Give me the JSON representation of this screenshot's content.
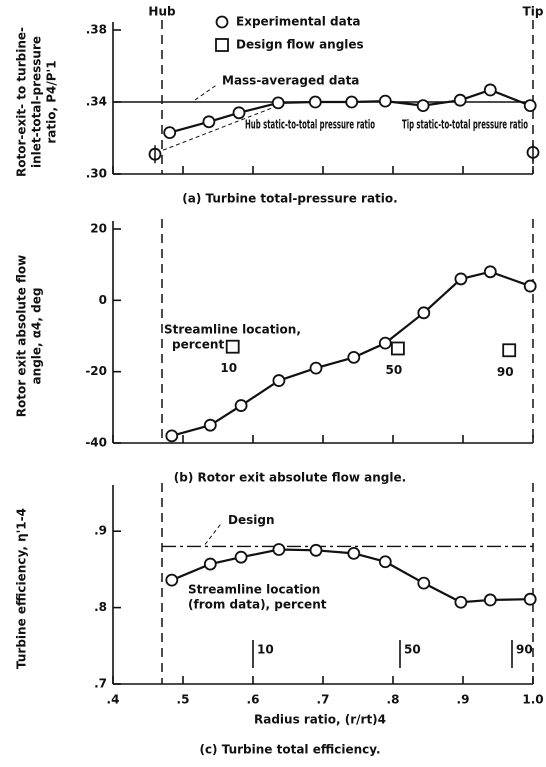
{
  "chart_data": [
    {
      "type": "line",
      "caption": "(a) Turbine total-pressure ratio.",
      "ylabel": [
        "Rotor-exit- to turbine-",
        "inlet-total-pressure",
        "ratio, P4/P'1"
      ],
      "hub": {
        "label": "Hub",
        "x": 0.47
      },
      "tip": {
        "label": "Tip",
        "x": 1.0
      },
      "xlim": [
        0.4,
        1.0
      ],
      "ylim": [
        0.3,
        0.38
      ],
      "yticks": [
        {
          "value": 0.38,
          "label": ".38"
        },
        {
          "value": 0.34,
          "label": ".34"
        },
        {
          "value": 0.3,
          "label": ".30"
        }
      ],
      "reference": {
        "label": "Mass-averaged data",
        "value": 0.34
      },
      "series": [
        {
          "name": "Experimental data",
          "color": "#111111",
          "x": [
            0.481,
            0.537,
            0.58,
            0.636,
            0.689,
            0.741,
            0.789,
            0.843,
            0.896,
            0.939,
            0.996
          ],
          "values": [
            0.323,
            0.329,
            0.334,
            0.3395,
            0.34,
            0.34,
            0.3405,
            0.338,
            0.341,
            0.3467,
            0.338
          ]
        },
        {
          "name": "Hub static-to-total pressure ratio",
          "color": "#111111",
          "x": [
            0.46
          ],
          "values": [
            0.311
          ]
        },
        {
          "name": "Tip static-to-total pressure ratio",
          "color": "#111111",
          "x": [
            1.0
          ],
          "values": [
            0.312
          ]
        }
      ]
    },
    {
      "type": "line",
      "caption": "(b) Rotor exit absolute flow angle.",
      "ylabel": [
        "Rotor exit absolute flow",
        "angle, α4, deg"
      ],
      "annotation": [
        "Streamline location,",
        "percent"
      ],
      "xlim": [
        0.4,
        1.0
      ],
      "ylim": [
        -40,
        20
      ],
      "yticks": [
        20,
        0,
        -20,
        -40
      ],
      "series": [
        {
          "color": "#111111",
          "x": [
            0.484,
            0.539,
            0.583,
            0.637,
            0.69,
            0.744,
            0.789,
            0.844,
            0.897,
            0.939,
            0.996
          ],
          "values": [
            -38,
            -35,
            -29.5,
            -22.5,
            -19,
            -16,
            -12,
            -3.5,
            6,
            8,
            4
          ]
        },
        {
          "name": "Design flow angles",
          "color": "#111111",
          "x": [
            0.571,
            0.807,
            0.966
          ],
          "values": [
            -13,
            -13.5,
            -14
          ],
          "point_labels": [
            "10",
            "50",
            "90"
          ]
        }
      ]
    },
    {
      "type": "line",
      "caption": "(c) Turbine total efficiency.",
      "ylabel": [
        "Turbine efficiency, η'1-4"
      ],
      "xlabel": "Radius ratio, (r/rt)4",
      "xlim": [
        0.4,
        1.0
      ],
      "xticks": [
        {
          "value": 0.4,
          "label": ".4"
        },
        {
          "value": 0.5,
          "label": ".5"
        },
        {
          "value": 0.6,
          "label": ".6"
        },
        {
          "value": 0.7,
          "label": ".7"
        },
        {
          "value": 0.8,
          "label": ".8"
        },
        {
          "value": 0.9,
          "label": ".9"
        },
        {
          "value": 1.0,
          "label": "1.0"
        }
      ],
      "ylim": [
        0.7,
        0.95
      ],
      "yticks": [
        {
          "value": 0.9,
          "label": ".9"
        },
        {
          "value": 0.8,
          "label": ".8"
        },
        {
          "value": 0.7,
          "label": ".7"
        }
      ],
      "reference": {
        "label": "Design",
        "value": 0.88
      },
      "annotation": [
        "Streamline location",
        "(from data), percent"
      ],
      "streamlines": {
        "x": [
          0.6,
          0.81,
          0.97
        ],
        "labels": [
          "10",
          "50",
          "90"
        ]
      },
      "series": [
        {
          "color": "#111111",
          "x": [
            0.484,
            0.539,
            0.583,
            0.637,
            0.69,
            0.744,
            0.789,
            0.844,
            0.897,
            0.939,
            0.996
          ],
          "values": [
            0.836,
            0.857,
            0.866,
            0.876,
            0.875,
            0.871,
            0.86,
            0.832,
            0.807,
            0.81,
            0.811
          ]
        }
      ]
    }
  ]
}
